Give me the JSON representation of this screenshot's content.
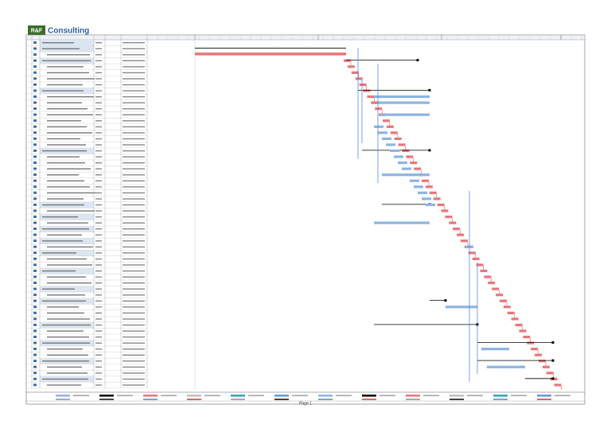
{
  "header": {
    "logo": "R&F",
    "title": "Consulting"
  },
  "footer": {
    "page": "Page 1"
  }
}
